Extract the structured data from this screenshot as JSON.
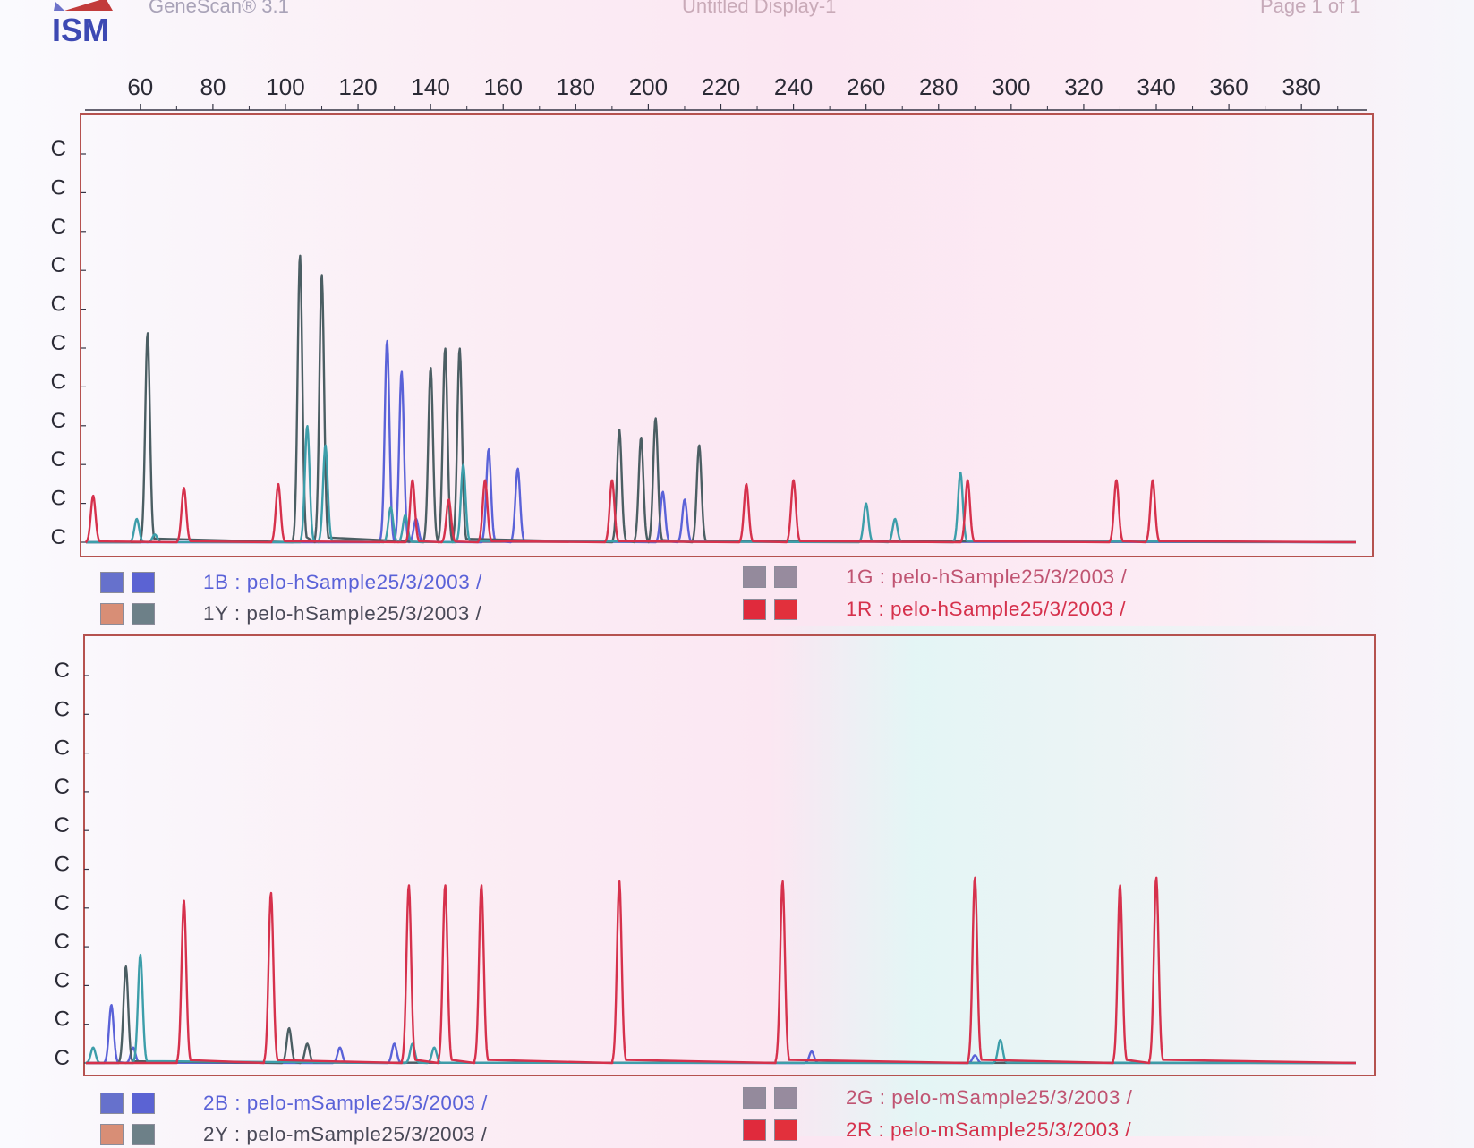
{
  "header": {
    "app_name": "GeneScan® 3.1",
    "display_title": "Untitled Display-1",
    "page_number": "Page 1 of 1",
    "logo_text": "ISM"
  },
  "colors": {
    "blue": "#5a62d8",
    "green": "#4b5e63",
    "yellow": "#3d9eaa",
    "red": "#d6314c",
    "frame": "#b5524f",
    "axis_text": "#2a2a35"
  },
  "x_axis": {
    "ticks": [
      "60",
      "80",
      "100",
      "120",
      "140",
      "160",
      "180",
      "200",
      "220",
      "240",
      "260",
      "280",
      "300",
      "320",
      "340",
      "360",
      "380"
    ]
  },
  "legend_1": [
    {
      "label": "1B : pelo-hSample25/3/2003 /",
      "color": "#5a62d8",
      "swatches": [
        "#6671cc",
        "#5b63d3"
      ]
    },
    {
      "label": "1Y : pelo-hSample25/3/2003 /",
      "color": "#4a4a58",
      "swatches": [
        "#d88e76",
        "#6d8088"
      ]
    },
    {
      "label": "1G : pelo-hSample25/3/2003 /",
      "color": "#c05472",
      "swatches": [
        "#948a9c",
        "#978b9e"
      ]
    },
    {
      "label": "1R : pelo-hSample25/3/2003 /",
      "color": "#d6314c",
      "swatches": [
        "#e02a3c",
        "#e2303c"
      ]
    }
  ],
  "legend_2": [
    {
      "label": "2B : pelo-mSample25/3/2003 /",
      "color": "#5a62d8",
      "swatches": [
        "#6671cc",
        "#5b63d3"
      ]
    },
    {
      "label": "2Y : pelo-mSample25/3/2003 /",
      "color": "#4a4a58",
      "swatches": [
        "#d88e76",
        "#6d8088"
      ]
    },
    {
      "label": "2G : pelo-mSample25/3/2003 /",
      "color": "#c05472",
      "swatches": [
        "#948a9c",
        "#978b9e"
      ]
    },
    {
      "label": "2R : pelo-mSample25/3/2003 /",
      "color": "#d6314c",
      "swatches": [
        "#e02a3c",
        "#e2303c"
      ]
    }
  ],
  "chart_data": [
    {
      "type": "line",
      "panel": "1",
      "x_unit": "size (bp)",
      "xlim": [
        45,
        395
      ],
      "ylim": [
        0,
        10
      ],
      "y_tick_labels": [
        "C",
        "C",
        "C",
        "C",
        "C",
        "C",
        "C",
        "C",
        "C",
        "C",
        "C"
      ],
      "series": [
        {
          "name": "1B",
          "color": "#5a62d8",
          "peaks": [
            [
              128,
              5.2
            ],
            [
              132,
              4.4
            ],
            [
              136,
              0.6
            ],
            [
              156,
              2.4
            ],
            [
              164,
              1.9
            ],
            [
              204,
              1.3
            ],
            [
              210,
              1.1
            ]
          ]
        },
        {
          "name": "1G",
          "color": "#4b5e63",
          "peaks": [
            [
              62,
              5.4
            ],
            [
              104,
              7.4
            ],
            [
              110,
              6.9
            ],
            [
              140,
              4.5
            ],
            [
              144,
              5.0
            ],
            [
              148,
              5.0
            ],
            [
              192,
              2.9
            ],
            [
              198,
              2.7
            ],
            [
              202,
              3.2
            ],
            [
              214,
              2.5
            ]
          ]
        },
        {
          "name": "1Y",
          "color": "#3d9eaa",
          "peaks": [
            [
              59,
              0.6
            ],
            [
              64,
              0.2
            ],
            [
              106,
              3.0
            ],
            [
              111,
              2.5
            ],
            [
              129,
              0.9
            ],
            [
              133,
              0.7
            ],
            [
              149,
              2.0
            ],
            [
              260,
              1.0
            ],
            [
              268,
              0.6
            ],
            [
              286,
              1.8
            ]
          ]
        },
        {
          "name": "1R",
          "color": "#d6314c",
          "peaks": [
            [
              47,
              1.2
            ],
            [
              72,
              1.4
            ],
            [
              98,
              1.5
            ],
            [
              135,
              1.6
            ],
            [
              145,
              1.1
            ],
            [
              155,
              1.6
            ],
            [
              190,
              1.6
            ],
            [
              227,
              1.5
            ],
            [
              240,
              1.6
            ],
            [
              288,
              1.6
            ],
            [
              329,
              1.6
            ],
            [
              339,
              1.6
            ]
          ]
        }
      ]
    },
    {
      "type": "line",
      "panel": "2",
      "x_unit": "size (bp)",
      "xlim": [
        45,
        395
      ],
      "ylim": [
        0,
        10
      ],
      "y_tick_labels": [
        "C",
        "C",
        "C",
        "C",
        "C",
        "C",
        "C",
        "C",
        "C",
        "C",
        "C"
      ],
      "series": [
        {
          "name": "2B",
          "color": "#5a62d8",
          "peaks": [
            [
              52,
              1.5
            ],
            [
              58,
              0.4
            ],
            [
              115,
              0.4
            ],
            [
              130,
              0.5
            ],
            [
              245,
              0.3
            ],
            [
              290,
              0.2
            ]
          ]
        },
        {
          "name": "2G",
          "color": "#4b5e63",
          "peaks": [
            [
              56,
              2.5
            ],
            [
              101,
              0.9
            ],
            [
              106,
              0.5
            ]
          ]
        },
        {
          "name": "2Y",
          "color": "#3d9eaa",
          "peaks": [
            [
              47,
              0.4
            ],
            [
              60,
              2.8
            ],
            [
              135,
              0.5
            ],
            [
              141,
              0.4
            ],
            [
              297,
              0.6
            ]
          ]
        },
        {
          "name": "2R",
          "color": "#d6314c",
          "peaks": [
            [
              72,
              4.2
            ],
            [
              96,
              4.4
            ],
            [
              134,
              4.6
            ],
            [
              144,
              4.6
            ],
            [
              154,
              4.6
            ],
            [
              192,
              4.7
            ],
            [
              237,
              4.7
            ],
            [
              290,
              4.8
            ],
            [
              330,
              4.6
            ],
            [
              340,
              4.8
            ]
          ]
        }
      ]
    }
  ]
}
